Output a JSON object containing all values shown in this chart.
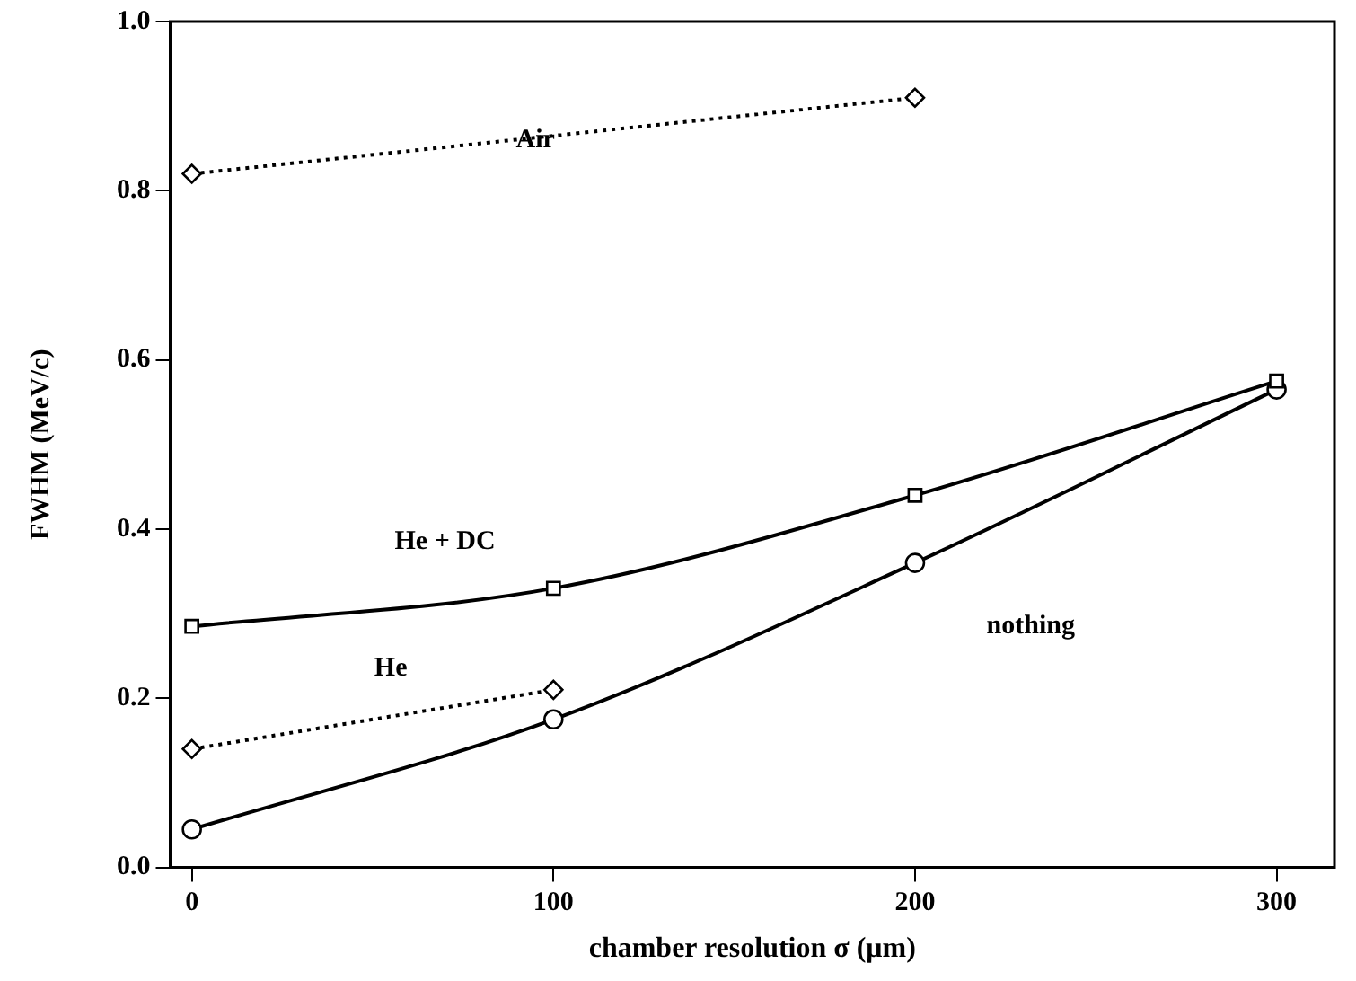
{
  "chart_data": {
    "type": "line",
    "xlabel": "chamber resolution σ (μm)",
    "ylabel": "FWHM (MeV/c)",
    "xlim": [
      -6,
      316
    ],
    "xticks": [
      0,
      100,
      200,
      300
    ],
    "ylim": [
      0,
      1
    ],
    "yticks": [
      {
        "value": 0,
        "label": "0.0"
      },
      0.2,
      0.4,
      0.6,
      0.8,
      {
        "value": 1,
        "label": "1.0"
      }
    ],
    "grid": false,
    "legend": false,
    "series": [
      {
        "name": "Air",
        "color": "#000000",
        "x": [
          0,
          200
        ],
        "values": [
          0.82,
          0.91
        ],
        "marker": "diamond",
        "line_style": "dotted"
      },
      {
        "name": "He + DC",
        "color": "#000000",
        "x": [
          0,
          100,
          200,
          300
        ],
        "values": [
          0.285,
          0.33,
          0.44,
          0.575
        ],
        "marker": "square",
        "line_style": "solid"
      },
      {
        "name": "He",
        "color": "#000000",
        "x": [
          0,
          100
        ],
        "values": [
          0.14,
          0.21
        ],
        "marker": "diamond",
        "line_style": "dotted"
      },
      {
        "name": "nothing",
        "color": "#000000",
        "x": [
          0,
          100,
          200,
          300
        ],
        "values": [
          0.045,
          0.175,
          0.36,
          0.565
        ],
        "marker": "circle",
        "line_style": "solid"
      }
    ]
  }
}
